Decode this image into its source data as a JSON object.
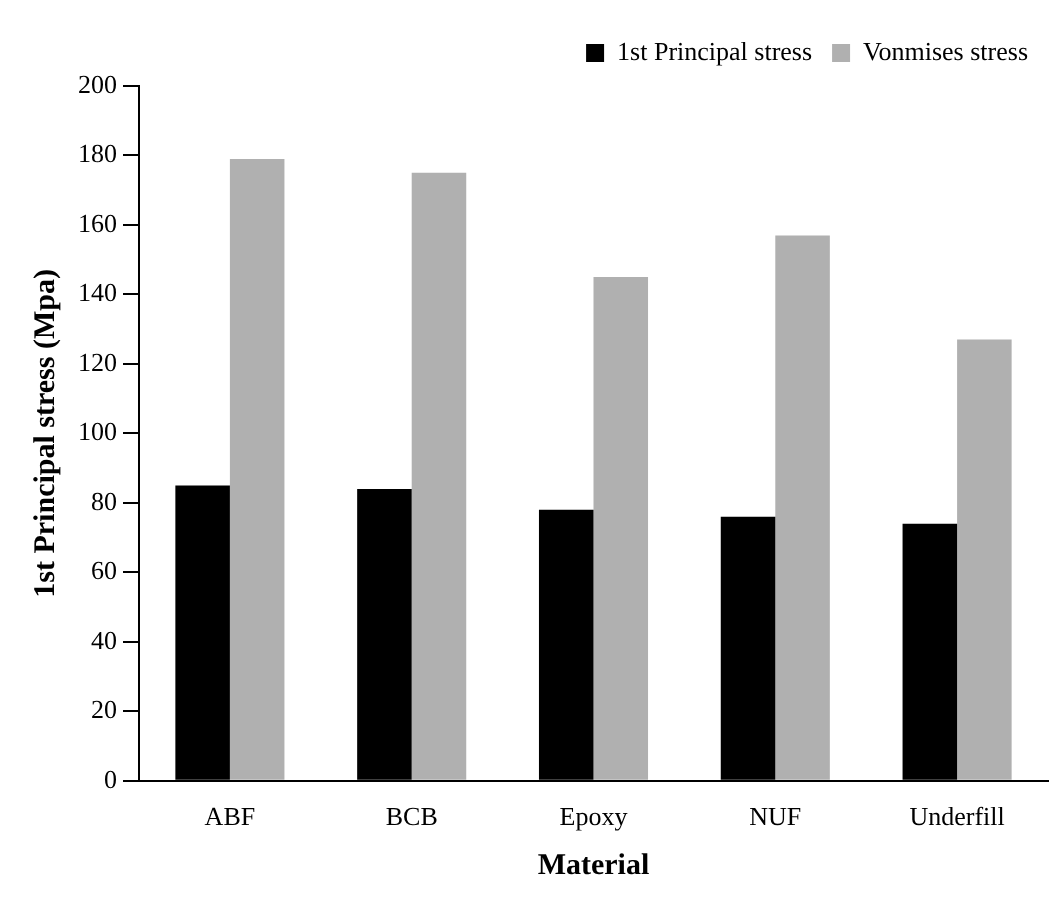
{
  "chart_data": {
    "type": "bar",
    "xlabel": "Material",
    "ylabel": "1st Principal stress (Mpa)",
    "categories": [
      "ABF",
      "BCB",
      "Epoxy",
      "NUF",
      "Underfill"
    ],
    "series": [
      {
        "name": "1st Principal stress",
        "color": "#000000",
        "values": [
          85,
          84,
          78,
          76,
          74
        ]
      },
      {
        "name": "Vonmises stress",
        "color": "#b0b0b0",
        "values": [
          179,
          175,
          145,
          157,
          127
        ]
      }
    ],
    "ylim": [
      0,
      200
    ],
    "yticks": [
      0,
      20,
      40,
      60,
      80,
      100,
      120,
      140,
      160,
      180,
      200
    ],
    "grid": false,
    "legend": "top right"
  }
}
